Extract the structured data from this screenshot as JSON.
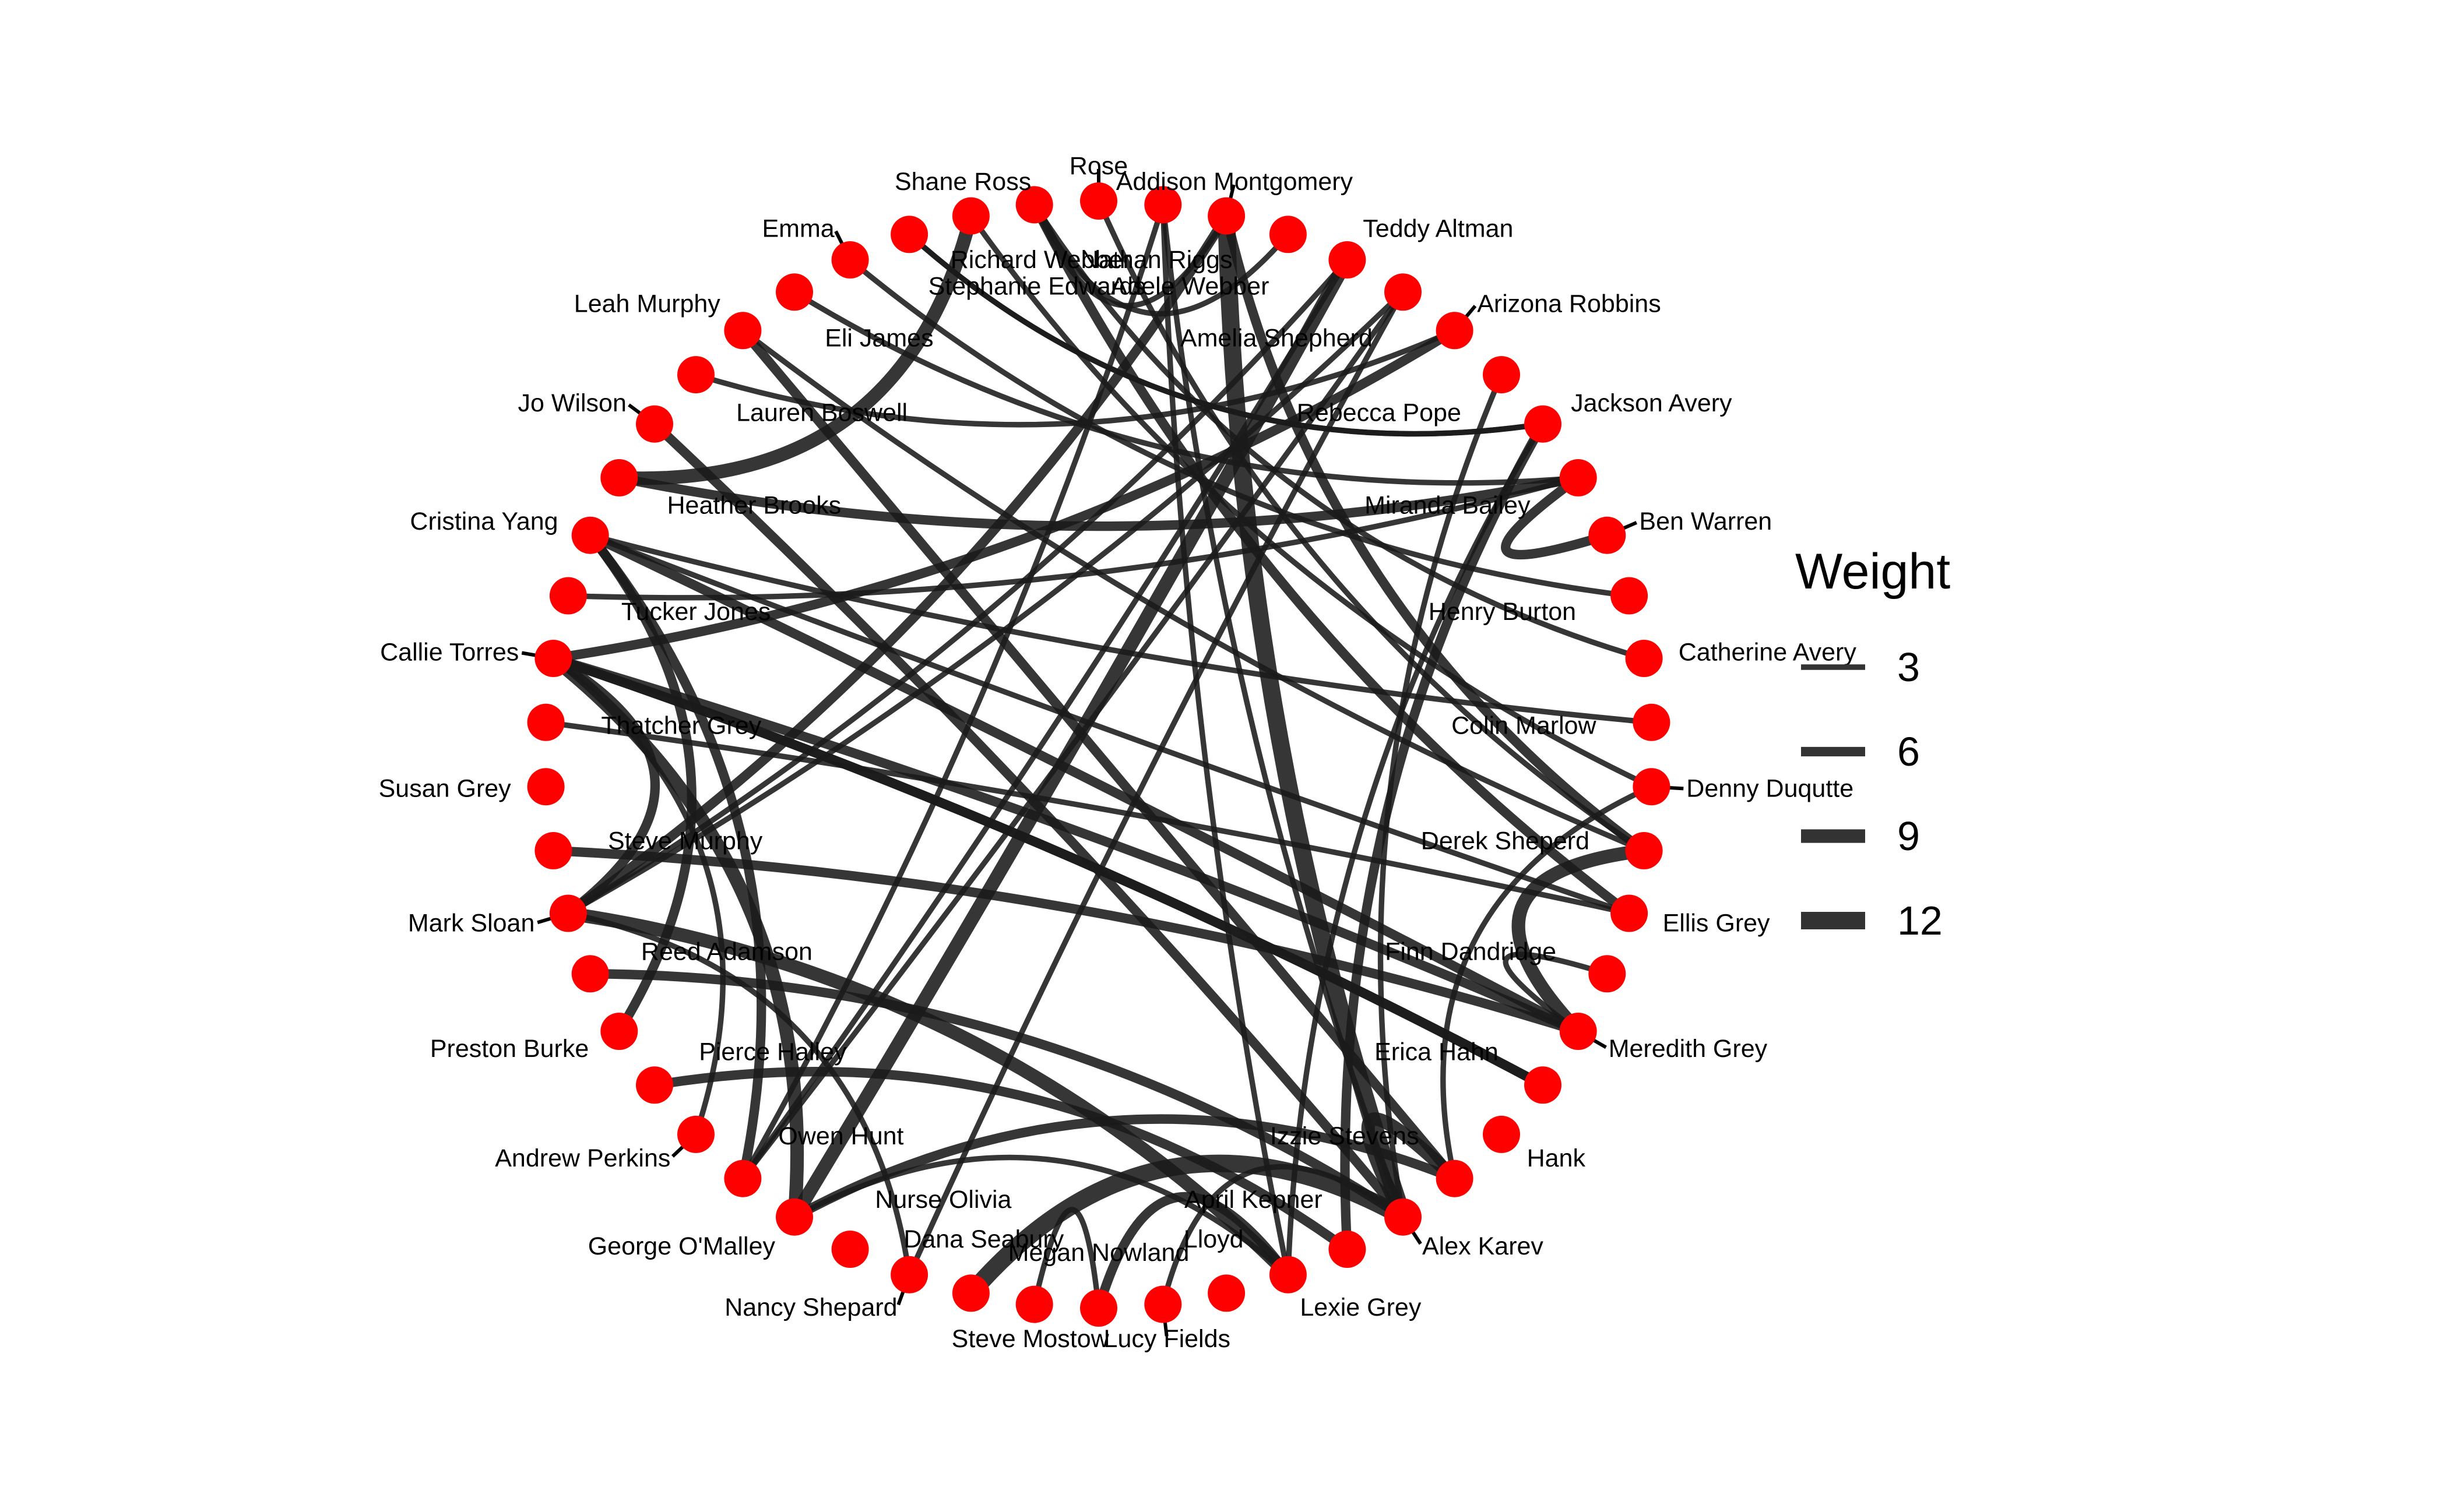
{
  "colors": {
    "node": "#ff0000",
    "edge": "#1a1a1a",
    "background": "#ffffff"
  },
  "legend": {
    "title": "Weight",
    "items": [
      {
        "label": "3",
        "weight": 3
      },
      {
        "label": "6",
        "weight": 6
      },
      {
        "label": "9",
        "weight": 9
      },
      {
        "label": "12",
        "weight": 12
      }
    ]
  },
  "nodes": [
    "Addison Montgomery",
    "Adele Webber",
    "Teddy Altman",
    "Amelia Shepherd",
    "Arizona Robbins",
    "Rebecca Pope",
    "Jackson Avery",
    "Miranda Bailey",
    "Ben Warren",
    "Henry Burton",
    "Catherine Avery",
    "Colin Marlow",
    "Denny Duqutte",
    "Derek Sheperd",
    "Ellis Grey",
    "Finn Dandridge",
    "Meredith Grey",
    "Erica Hahn",
    "Hank",
    "Izzie Stevens",
    "Alex Karev",
    "April Kepner",
    "Lexie Grey",
    "Lloyd",
    "Lucy Fields",
    "Megan Nowland",
    "Steve Mostow",
    "Dana Seabury",
    "Nancy Shepard",
    "Nurse Olivia",
    "George O'Malley",
    "Owen Hunt",
    "Andrew Perkins",
    "Pierce Halley",
    "Preston Burke",
    "Reed Adamson",
    "Mark Sloan",
    "Steve Murphy",
    "Susan Grey",
    "Thatcher Grey",
    "Callie Torres",
    "Tucker Jones",
    "Cristina Yang",
    "Heather Brooks",
    "Jo Wilson",
    "Lauren Boswell",
    "Leah Murphy",
    "Eli James",
    "Emma",
    "Stephanie Edwards",
    "Shane Ross",
    "Richard Webber",
    "Rose",
    "Nathan Riggs"
  ],
  "edges": [
    [
      "Addison Montgomery",
      "Derek Sheperd",
      6
    ],
    [
      "Addison Montgomery",
      "Alex Karev",
      12
    ],
    [
      "Addison Montgomery",
      "Mark Sloan",
      6
    ],
    [
      "Addison Montgomery",
      "Richard Webber",
      3
    ],
    [
      "Adele Webber",
      "Richard Webber",
      3
    ],
    [
      "Teddy Altman",
      "George O'Malley",
      9
    ],
    [
      "Teddy Altman",
      "Mark Sloan",
      3
    ],
    [
      "Teddy Altman",
      "Owen Hunt",
      3
    ],
    [
      "Amelia Shepherd",
      "Owen Hunt",
      3
    ],
    [
      "Amelia Shepherd",
      "Nancy Shepard",
      3
    ],
    [
      "Arizona Robbins",
      "Callie Torres",
      6
    ],
    [
      "Arizona Robbins",
      "Lauren Boswell",
      3
    ],
    [
      "Rebecca Pope",
      "Alex Karev",
      3
    ],
    [
      "Jackson Avery",
      "April Kepner",
      6
    ],
    [
      "Jackson Avery",
      "Lexie Grey",
      3
    ],
    [
      "Jackson Avery",
      "Stephanie Edwards",
      3
    ],
    [
      "Miranda Bailey",
      "Ben Warren",
      6
    ],
    [
      "Miranda Bailey",
      "Tucker Jones",
      3
    ],
    [
      "Henry Burton",
      "Emma",
      3
    ],
    [
      "Catherine Avery",
      "Richard Webber",
      3
    ],
    [
      "Colin Marlow",
      "Cristina Yang",
      3
    ],
    [
      "Denny Duqutte",
      "Izzie Stevens",
      3
    ],
    [
      "Derek Sheperd",
      "Meredith Grey",
      9
    ],
    [
      "Derek Sheperd",
      "Rose",
      3
    ],
    [
      "Ellis Grey",
      "Thatcher Grey",
      3
    ],
    [
      "Ellis Grey",
      "Richard Webber",
      6
    ],
    [
      "Finn Dandridge",
      "Meredith Grey",
      3
    ],
    [
      "Meredith Grey",
      "Steve Murphy",
      6
    ],
    [
      "Meredith Grey",
      "Cristina Yang",
      6
    ],
    [
      "Erica Hahn",
      "Callie Torres",
      6
    ],
    [
      "Izzie Stevens",
      "Leah Murphy",
      6
    ],
    [
      "Alex Karev",
      "Jo Wilson",
      6
    ],
    [
      "Alex Karev",
      "Izzie Stevens",
      9
    ],
    [
      "Alex Karev",
      "Lucy Fields",
      3
    ],
    [
      "Alex Karev",
      "Reed Adamson",
      6
    ],
    [
      "Lexie Grey",
      "Mark Sloan",
      9
    ],
    [
      "Lexie Grey",
      "Megan Nowland",
      6
    ],
    [
      "Dana Seabury",
      "Alex Karev",
      12
    ],
    [
      "Steve Mostow",
      "Megan Nowland",
      3
    ],
    [
      "Nancy Shepard",
      "Mark Sloan",
      3
    ],
    [
      "George O'Malley",
      "Izzie Stevens",
      6
    ],
    [
      "George O'Malley",
      "Callie Torres",
      9
    ],
    [
      "George O'Malley",
      "Lexie Grey",
      3
    ],
    [
      "Andrew Perkins",
      "Callie Torres",
      3
    ],
    [
      "Pierce Halley",
      "April Kepner",
      6
    ],
    [
      "Preston Burke",
      "Cristina Yang",
      6
    ],
    [
      "Mark Sloan",
      "Callie Torres",
      6
    ],
    [
      "Mark Sloan",
      "Amelia Shepherd",
      3
    ],
    [
      "Callie Torres",
      "Erica Hahn",
      6
    ],
    [
      "Cristina Yang",
      "Owen Hunt",
      6
    ],
    [
      "Heather Brooks",
      "Shane Ross",
      9
    ],
    [
      "Heather Brooks",
      "Miranda Bailey",
      6
    ],
    [
      "Eli James",
      "Miranda Bailey",
      3
    ],
    [
      "Stephanie Edwards",
      "Jackson Avery",
      3
    ],
    [
      "Shane Ross",
      "Denny Duqutte",
      3
    ],
    [
      "Nathan Riggs",
      "Alex Karev",
      3
    ],
    [
      "Nathan Riggs",
      "Lexie Grey",
      3
    ],
    [
      "Owen Hunt",
      "Nathan Riggs",
      3
    ],
    [
      "Cristina Yang",
      "Ellis Grey",
      3
    ],
    [
      "Derek Sheperd",
      "Leah Murphy",
      3
    ],
    [
      "Meredith Grey",
      "Callie Torres",
      6
    ]
  ]
}
